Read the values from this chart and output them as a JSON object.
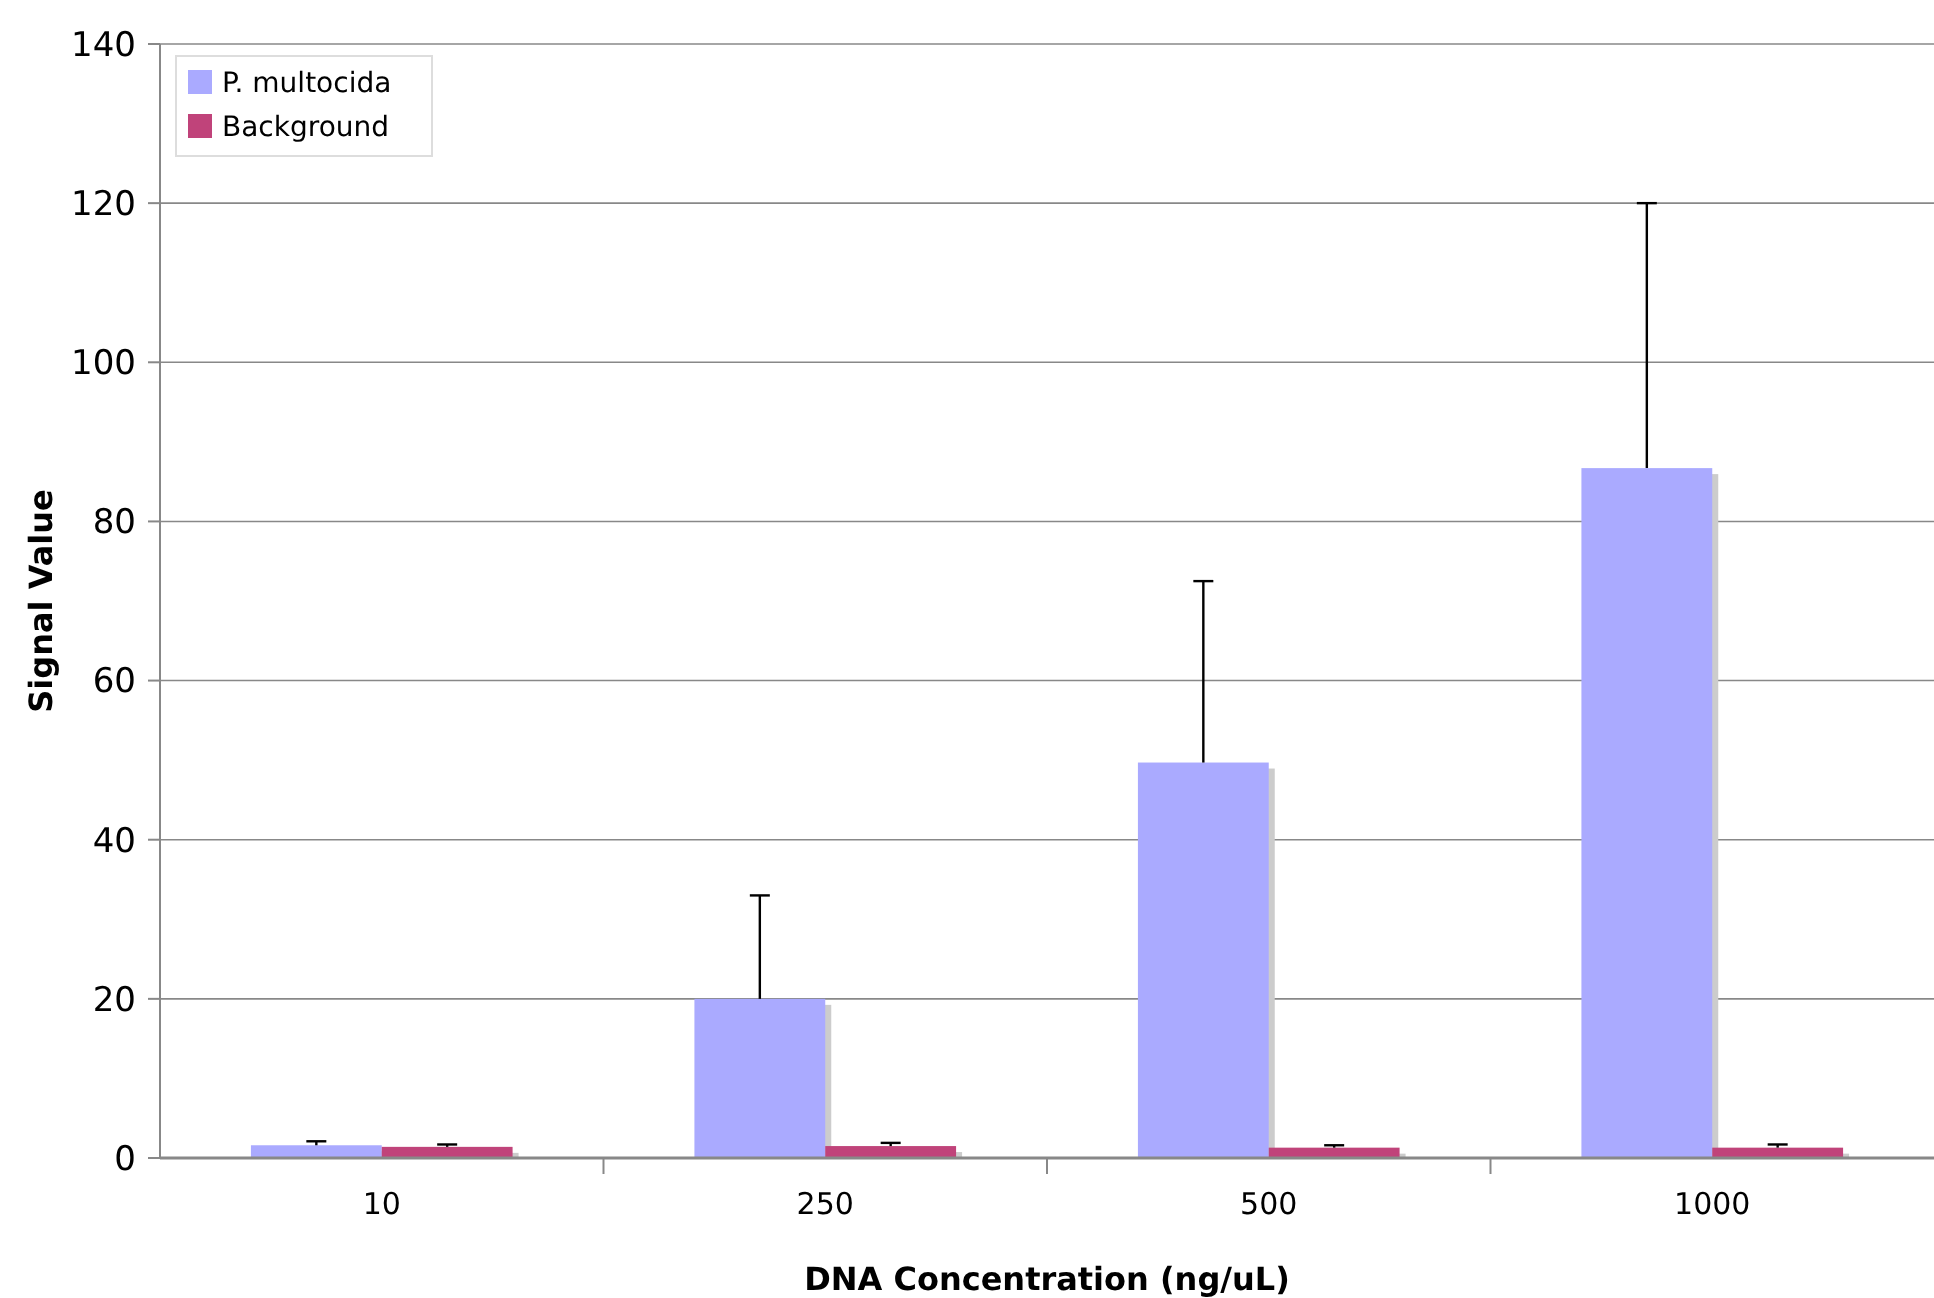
{
  "chart_data": {
    "type": "bar",
    "xlabel": "DNA Concentration (ng/uL)",
    "ylabel": "Signal Value",
    "categories": [
      "10",
      "250",
      "500",
      "1000"
    ],
    "series": [
      {
        "name": "P. multocida",
        "color": "#aaaaff",
        "values": [
          1.6,
          20,
          49.7,
          86.7
        ],
        "errors": [
          [
            1.6,
            2.1
          ],
          [
            20,
            33
          ],
          [
            49.7,
            72.5
          ],
          [
            86.7,
            120
          ]
        ]
      },
      {
        "name": "Background",
        "color": "#c0437a",
        "values": [
          1.4,
          1.5,
          1.3,
          1.3
        ],
        "errors": [
          [
            1.4,
            1.7
          ],
          [
            1.5,
            1.9
          ],
          [
            1.3,
            1.6
          ],
          [
            1.3,
            1.7
          ]
        ]
      }
    ],
    "ylim": [
      0,
      140
    ],
    "yticks": [
      0,
      20,
      40,
      60,
      80,
      100,
      120,
      140
    ],
    "grid": "y",
    "legend": "top left"
  }
}
